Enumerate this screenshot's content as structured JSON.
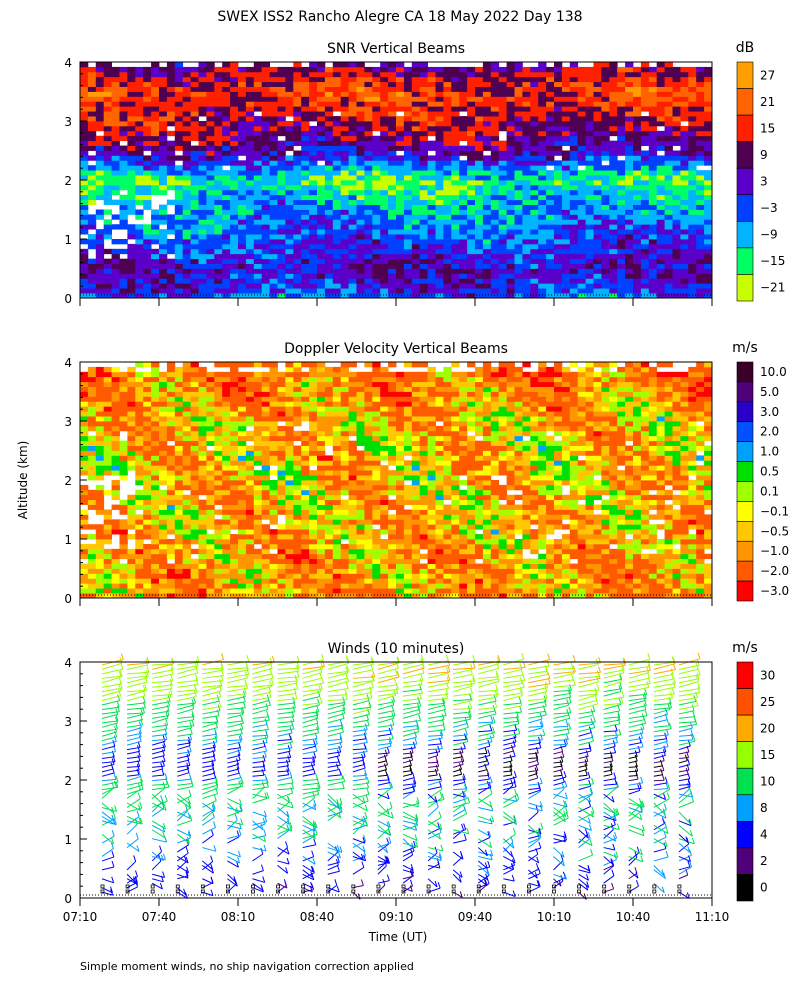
{
  "title": "SWEX ISS2 Rancho Alegre CA  18 May 2022 Day 138",
  "ylabel": "Altitude (km)",
  "xlabel": "Time (UT)",
  "footnote": "Simple moment winds, no ship navigation correction applied",
  "chart_data": [
    {
      "type": "heatmap",
      "title": "SNR Vertical Beams",
      "unit": "dB",
      "x_range": [
        "07:10",
        "11:10"
      ],
      "ylim": [
        0,
        4
      ],
      "y_ticks": [
        "0",
        "1",
        "2",
        "3",
        "4"
      ],
      "color_levels": [
        "27",
        "21",
        "15",
        "9",
        "3",
        "−3",
        "−9",
        "−15",
        "−21"
      ],
      "colors": [
        "#ffa000",
        "#ff6400",
        "#ff2000",
        "#500050",
        "#5a00c8",
        "#0040ff",
        "#00b4ff",
        "#00ff64",
        "#c8ff00"
      ],
      "profile_by_altitude_km": [
        [
          0.0,
          -1
        ],
        [
          0.25,
          4
        ],
        [
          0.5,
          6
        ],
        [
          1.0,
          0
        ],
        [
          1.5,
          -5
        ],
        [
          2.0,
          -12
        ],
        [
          2.5,
          8
        ],
        [
          3.0,
          15
        ],
        [
          3.5,
          20
        ],
        [
          4.0,
          10
        ]
      ],
      "legend": "right"
    },
    {
      "type": "heatmap",
      "title": "Doppler Velocity Vertical Beams",
      "unit": "m/s",
      "x_range": [
        "07:10",
        "11:10"
      ],
      "ylim": [
        0,
        4
      ],
      "y_ticks": [
        "0",
        "1",
        "2",
        "3",
        "4"
      ],
      "color_levels": [
        "10.0",
        "5.0",
        "3.0",
        "2.0",
        "1.0",
        "0.5",
        "0.1",
        "−0.1",
        "−0.5",
        "−1.0",
        "−2.0",
        "−3.0"
      ],
      "colors": [
        "#3c0028",
        "#500078",
        "#2800c8",
        "#0050ff",
        "#00a0ff",
        "#00e000",
        "#a0ff00",
        "#ffff00",
        "#ffc800",
        "#ff9600",
        "#ff5a00",
        "#ff0000"
      ],
      "profile_by_altitude_km": [
        [
          0.0,
          -0.8
        ],
        [
          1.0,
          -0.6
        ],
        [
          2.0,
          -0.4
        ],
        [
          3.0,
          -0.5
        ],
        [
          4.0,
          -1.2
        ]
      ],
      "legend": "right"
    },
    {
      "type": "wind_barbs",
      "title": "Winds (10 minutes)",
      "unit": "m/s",
      "x_ticks": [
        "07:10",
        "07:40",
        "08:10",
        "08:40",
        "09:10",
        "09:40",
        "10:10",
        "10:40",
        "11:10"
      ],
      "ylim": [
        0,
        4
      ],
      "y_ticks": [
        "0",
        "1",
        "2",
        "3",
        "4"
      ],
      "color_levels": [
        "30",
        "25",
        "20",
        "15",
        "10",
        "8",
        "4",
        "2",
        "0"
      ],
      "colors": [
        "#ff0000",
        "#ff5000",
        "#ffaa00",
        "#96ff00",
        "#00e050",
        "#00a0ff",
        "#0000ff",
        "#500078",
        "#000000"
      ],
      "profile_count": 24,
      "speed_by_altitude_km": [
        [
          0.0,
          4
        ],
        [
          1.0,
          9
        ],
        [
          1.9,
          12
        ],
        [
          2.1,
          5
        ],
        [
          3.0,
          12
        ],
        [
          3.5,
          17
        ],
        [
          4.0,
          20
        ]
      ],
      "legend": "right"
    }
  ]
}
